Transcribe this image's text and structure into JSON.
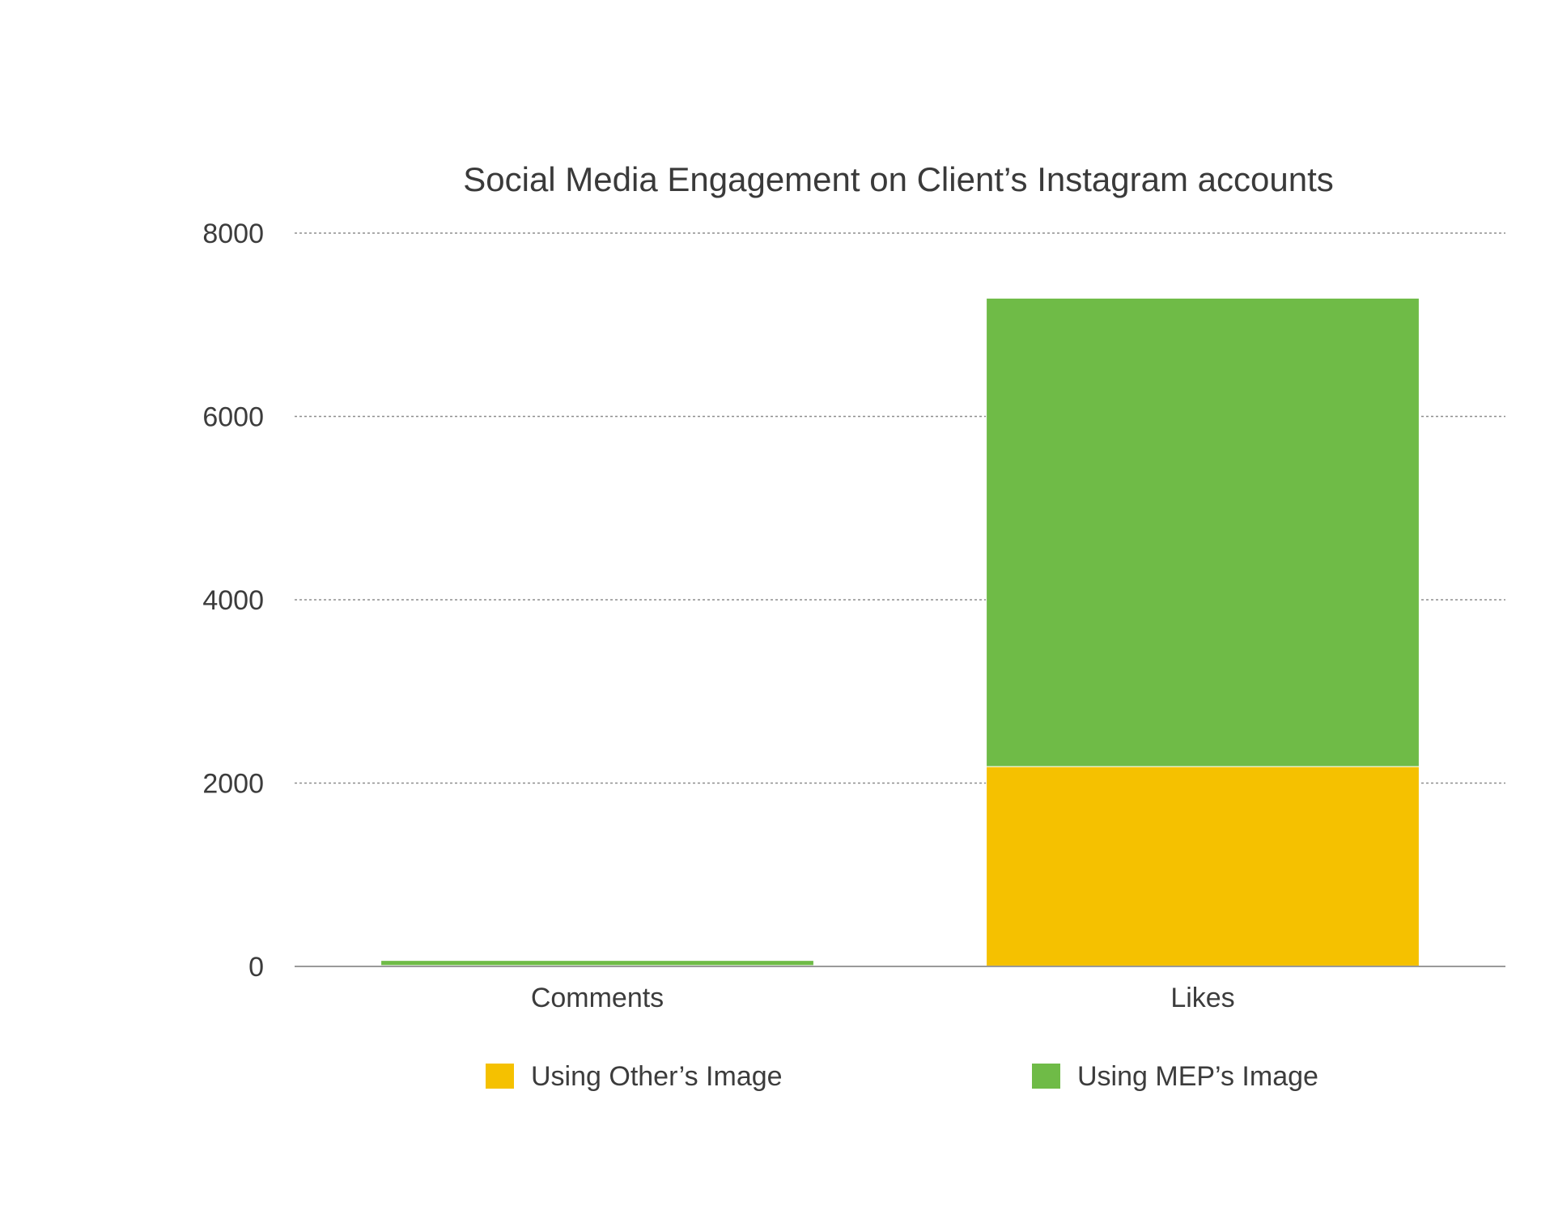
{
  "chart_data": {
    "type": "bar",
    "stacked": true,
    "title": "Social Media Engagement on Client’s Instagram accounts",
    "xlabel": "",
    "ylabel": "",
    "categories": [
      "Comments",
      "Likes"
    ],
    "series": [
      {
        "name": "Using Other’s Image",
        "values": [
          10,
          2180
        ],
        "color": "#f5c100"
      },
      {
        "name": "Using MEP’s Image",
        "values": [
          55,
          5110
        ],
        "color": "#6fbb47"
      }
    ],
    "ylim": [
      0,
      8000
    ],
    "yticks": [
      0,
      2000,
      4000,
      6000,
      8000
    ],
    "grid": true,
    "legend": "bottom"
  }
}
